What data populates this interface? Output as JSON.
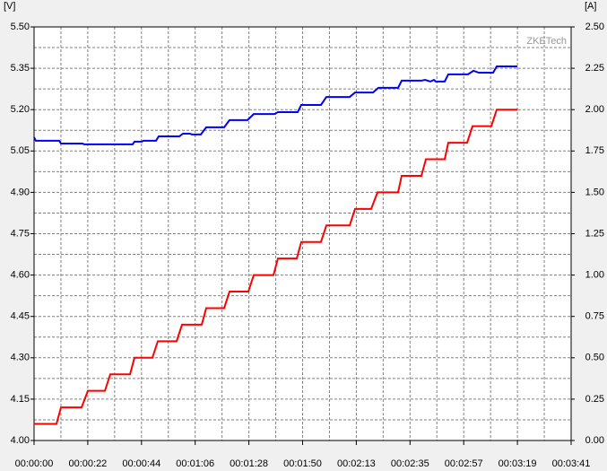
{
  "chart_data": {
    "type": "line",
    "watermark": "ZKETech",
    "y_label": "[V]",
    "y2_label": "[A]",
    "xlim": [
      0,
      221
    ],
    "xticks": [
      {
        "value": 0,
        "label": "00:00:00"
      },
      {
        "value": 22.1,
        "label": "00:00:22"
      },
      {
        "value": 44.2,
        "label": "00:00:44"
      },
      {
        "value": 66.3,
        "label": "00:01:06"
      },
      {
        "value": 88.4,
        "label": "00:01:28"
      },
      {
        "value": 110.5,
        "label": "00:01:50"
      },
      {
        "value": 132.6,
        "label": "00:02:13"
      },
      {
        "value": 154.7,
        "label": "00:02:35"
      },
      {
        "value": 176.8,
        "label": "00:02:57"
      },
      {
        "value": 198.9,
        "label": "00:03:19"
      },
      {
        "value": 221,
        "label": "00:03:41"
      }
    ],
    "ylim": [
      4.0,
      5.5
    ],
    "yticks": [
      {
        "value": 4.0,
        "label": "4.00"
      },
      {
        "value": 4.15,
        "label": "4.15"
      },
      {
        "value": 4.3,
        "label": "4.30"
      },
      {
        "value": 4.45,
        "label": "4.45"
      },
      {
        "value": 4.6,
        "label": "4.60"
      },
      {
        "value": 4.75,
        "label": "4.75"
      },
      {
        "value": 4.9,
        "label": "4.90"
      },
      {
        "value": 5.05,
        "label": "5.05"
      },
      {
        "value": 5.2,
        "label": "5.20"
      },
      {
        "value": 5.35,
        "label": "5.35"
      },
      {
        "value": 5.5,
        "label": "5.50"
      }
    ],
    "y2lim": [
      0,
      2.5
    ],
    "y2ticks": [
      {
        "value": 0,
        "label": "0.00"
      },
      {
        "value": 0.25,
        "label": "0.25"
      },
      {
        "value": 0.5,
        "label": "0.50"
      },
      {
        "value": 0.75,
        "label": "0.75"
      },
      {
        "value": 1.0,
        "label": "1.00"
      },
      {
        "value": 1.25,
        "label": "1.25"
      },
      {
        "value": 1.5,
        "label": "1.50"
      },
      {
        "value": 1.75,
        "label": "1.75"
      },
      {
        "value": 2.0,
        "label": "2.00"
      },
      {
        "value": 2.25,
        "label": "2.25"
      },
      {
        "value": 2.5,
        "label": "2.50"
      }
    ],
    "grid": true,
    "series": [
      {
        "color": "#0000ff",
        "axis": "y",
        "x": [
          0,
          0.74,
          10.33,
          11.07,
          19.92,
          20.66,
          40.58,
          41.32,
          44.27,
          45.01,
          50.18,
          51.28,
          59.77,
          61.25,
          64.2,
          64.94,
          68.62,
          70.84,
          78.22,
          80.43,
          87.81,
          90.39,
          98.88,
          100.35,
          108.47,
          109.95,
          118.06,
          120.28,
          129.87,
          132.08,
          139.46,
          141.68,
          149.79,
          151.27,
          159.39,
          160.86,
          163.08,
          164.55,
          165.29,
          168.98,
          170.45,
          178.57,
          180.79,
          183.0,
          188.9,
          190.38,
          198.86
        ],
        "values": [
          5.1,
          5.087,
          5.087,
          5.077,
          5.077,
          5.074,
          5.074,
          5.084,
          5.084,
          5.087,
          5.087,
          5.103,
          5.103,
          5.113,
          5.113,
          5.11,
          5.11,
          5.136,
          5.136,
          5.162,
          5.162,
          5.184,
          5.184,
          5.191,
          5.191,
          5.217,
          5.217,
          5.246,
          5.246,
          5.262,
          5.262,
          5.279,
          5.279,
          5.305,
          5.305,
          5.308,
          5.302,
          5.308,
          5.302,
          5.302,
          5.328,
          5.328,
          5.341,
          5.334,
          5.334,
          5.357,
          5.357
        ]
      },
      {
        "color": "#ff0000",
        "axis": "y2",
        "x": [
          0,
          9.22,
          11.07,
          19.55,
          22.14,
          29.15,
          31.36,
          39.48,
          41.32,
          48.7,
          50.92,
          58.66,
          60.88,
          68.99,
          70.84,
          78.22,
          80.43,
          88.18,
          90.39,
          98.51,
          100.35,
          108.1,
          109.95,
          118.06,
          120.28,
          129.87,
          132.08,
          138.73,
          141.31,
          149.79,
          151.27,
          159.39,
          161.23,
          168.98,
          170.45,
          178.2,
          180.42,
          188.16,
          190.38,
          198.86
        ],
        "values": [
          0.1,
          0.1,
          0.2,
          0.2,
          0.3,
          0.3,
          0.4,
          0.4,
          0.5,
          0.5,
          0.6,
          0.6,
          0.7,
          0.7,
          0.8,
          0.8,
          0.9,
          0.9,
          1.0,
          1.0,
          1.1,
          1.1,
          1.2,
          1.2,
          1.3,
          1.3,
          1.4,
          1.4,
          1.5,
          1.5,
          1.6,
          1.6,
          1.7,
          1.7,
          1.8,
          1.8,
          1.9,
          1.9,
          2.0,
          2.0
        ]
      }
    ]
  }
}
